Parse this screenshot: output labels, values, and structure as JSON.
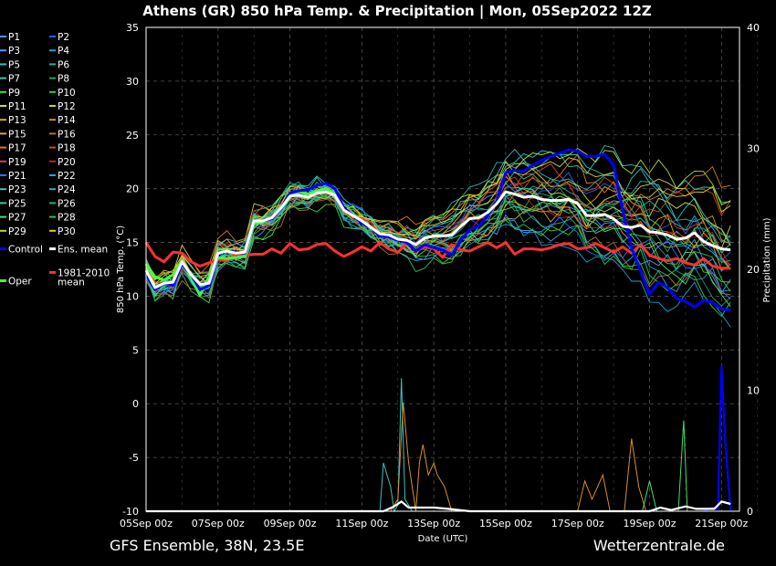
{
  "chart_data": {
    "type": "line",
    "title": "Athens  (GR)  850 hPa Temp. & Precipitation | Mon, 05Sep2022 12Z",
    "xlabel": "Date (UTC)",
    "ylabel": "850 hPa Temp. (°C)",
    "ylabel_right": "Precipitation (mm)",
    "x_ticks": [
      "05Sep 00z",
      "07Sep 00z",
      "09Sep 00z",
      "11Sep 00z",
      "13Sep 00z",
      "15Sep 00z",
      "17Sep 00z",
      "19Sep 00z",
      "21Sep 00z"
    ],
    "ylim": [
      -10,
      35
    ],
    "y_ticks": [
      -10,
      -5,
      0,
      5,
      10,
      15,
      20,
      25,
      30,
      35
    ],
    "ylim_right": [
      0,
      40
    ],
    "y_ticks_right": [
      0,
      10,
      20,
      30,
      40
    ],
    "grid": true,
    "legend_placement": "left",
    "legend": [
      {
        "label": "P1",
        "color": "#4f8fff"
      },
      {
        "label": "P2",
        "color": "#2a5dff"
      },
      {
        "label": "P3",
        "color": "#3fa0ff"
      },
      {
        "label": "P4",
        "color": "#1ea0d8"
      },
      {
        "label": "P5",
        "color": "#22c8c8"
      },
      {
        "label": "P6",
        "color": "#18b89a"
      },
      {
        "label": "P7",
        "color": "#20d0a0"
      },
      {
        "label": "P8",
        "color": "#1fa060"
      },
      {
        "label": "P9",
        "color": "#40e040"
      },
      {
        "label": "P10",
        "color": "#2fcf2f"
      },
      {
        "label": "P11",
        "color": "#c8e040"
      },
      {
        "label": "P12",
        "color": "#d8c840"
      },
      {
        "label": "P13",
        "color": "#e0b000"
      },
      {
        "label": "P14",
        "color": "#d89020"
      },
      {
        "label": "P15",
        "color": "#d8a060"
      },
      {
        "label": "P16",
        "color": "#b07040"
      },
      {
        "label": "P17",
        "color": "#e07820"
      },
      {
        "label": "P18",
        "color": "#c05020"
      },
      {
        "label": "P19",
        "color": "#e04040"
      },
      {
        "label": "P20",
        "color": "#c02020"
      },
      {
        "label": "P21",
        "color": "#3070ff"
      },
      {
        "label": "P22",
        "color": "#30a0e0"
      },
      {
        "label": "P23",
        "color": "#40c0c0"
      },
      {
        "label": "P24",
        "color": "#30b0b0"
      },
      {
        "label": "P25",
        "color": "#30d090"
      },
      {
        "label": "P26",
        "color": "#20b070"
      },
      {
        "label": "P27",
        "color": "#40e070"
      },
      {
        "label": "P28",
        "color": "#30c050"
      },
      {
        "label": "P29",
        "color": "#b0e030"
      },
      {
        "label": "P30",
        "color": "#e0d020"
      },
      {
        "label": "Control",
        "color": "#0000ff"
      },
      {
        "label": "Ens. mean",
        "color": "#ffffff"
      },
      {
        "label": "Oper",
        "color": "#40ff40"
      },
      {
        "label": "1981-2010\nmean",
        "color": "#ff3030"
      }
    ],
    "x_days": [
      0,
      0.25,
      0.5,
      0.75,
      1,
      1.25,
      1.5,
      1.75,
      2,
      2.25,
      2.5,
      2.75,
      3,
      3.25,
      3.5,
      3.75,
      4,
      4.25,
      4.5,
      4.75,
      5,
      5.25,
      5.5,
      5.75,
      6,
      6.25,
      6.5,
      6.75,
      7,
      7.25,
      7.5,
      7.75,
      8,
      8.25,
      8.5,
      8.75,
      9,
      9.25,
      9.5,
      9.75,
      10,
      10.25,
      10.5,
      10.75,
      11,
      11.25,
      11.5,
      11.75,
      12,
      12.25,
      12.5,
      12.75,
      13,
      13.25,
      13.5,
      13.75,
      14,
      14.25,
      14.5,
      14.75,
      15,
      15.25,
      15.5,
      15.75,
      16,
      16.25
    ],
    "series": [
      {
        "name": "Ens. mean",
        "color": "#ffffff",
        "values": [
          12.4,
          10.8,
          11.2,
          11.3,
          13.2,
          12.0,
          11.1,
          11.2,
          14.0,
          14.2,
          14.0,
          14.1,
          17.0,
          17.0,
          17.3,
          18.2,
          19.3,
          19.4,
          19.2,
          19.6,
          19.7,
          19.4,
          18.0,
          17.5,
          17.0,
          16.4,
          15.8,
          15.7,
          15.3,
          15.2,
          14.8,
          15.4,
          15.6,
          15.6,
          15.7,
          16.5,
          17.2,
          17.3,
          17.8,
          18.6,
          19.7,
          19.5,
          19.2,
          19.3,
          19.0,
          18.9,
          18.9,
          19.0,
          18.6,
          17.5,
          17.5,
          17.6,
          17.2,
          16.5,
          16.4,
          16.6,
          16.0,
          15.9,
          15.7,
          15.3,
          15.4,
          15.9,
          15.1,
          14.7,
          14.4,
          14.3
        ]
      },
      {
        "name": "Control",
        "color": "#0000ff",
        "values": [
          12.0,
          10.6,
          11.2,
          11.0,
          13.0,
          12.0,
          10.6,
          11.0,
          14.0,
          14.2,
          14.1,
          14.0,
          17.0,
          17.0,
          17.2,
          18.2,
          19.6,
          19.8,
          19.9,
          20.3,
          20.5,
          20.0,
          18.2,
          17.5,
          16.8,
          16.4,
          15.6,
          15.5,
          15.2,
          15.0,
          14.2,
          14.8,
          14.5,
          14.3,
          13.8,
          15.2,
          16.2,
          16.5,
          17.5,
          18.8,
          21.5,
          21.7,
          21.6,
          22.2,
          22.6,
          23.0,
          23.3,
          23.6,
          23.5,
          23.0,
          23.0,
          23.2,
          22.2,
          18.0,
          14.5,
          12.3,
          10.2,
          11.3,
          10.8,
          9.8,
          9.5,
          9.0,
          9.6,
          9.4,
          8.8,
          8.7
        ]
      },
      {
        "name": "1981-2010\nmean",
        "color": "#ff3030",
        "values": [
          15.0,
          13.7,
          13.2,
          14.1,
          14.0,
          13.2,
          12.8,
          13.1,
          13.4,
          13.3,
          13.9,
          13.8,
          13.9,
          13.9,
          14.4,
          14.0,
          14.9,
          14.3,
          14.4,
          14.8,
          14.9,
          14.2,
          13.7,
          14.1,
          14.6,
          14.2,
          15.0,
          14.4,
          14.1,
          14.9,
          14.2,
          14.6,
          14.4,
          13.6,
          14.8,
          14.3,
          14.2,
          14.6,
          15.0,
          14.5,
          15.0,
          13.9,
          14.4,
          14.4,
          14.3,
          14.5,
          14.8,
          14.9,
          14.4,
          14.5,
          14.9,
          14.5,
          14.1,
          14.6,
          14.0,
          14.8,
          13.8,
          13.5,
          13.3,
          13.5,
          13.1,
          12.9,
          13.5,
          12.8,
          12.6,
          12.6
        ]
      },
      {
        "name": "Oper",
        "color": "#40ff40",
        "values": [
          13.0,
          11.8,
          11.5,
          12.0,
          13.3,
          11.7,
          10.1,
          11.8,
          13.6,
          13.5,
          13.6,
          13.7,
          16.8,
          16.9,
          17.3,
          18.3,
          19.4,
          19.7,
          19.5,
          19.8,
          20.0,
          19.6
        ]
      }
    ],
    "precip_series": [
      {
        "name": "Control",
        "color": "#0000ff",
        "points": [
          [
            15.5,
            0
          ],
          [
            15.75,
            0.3
          ],
          [
            15.9,
            0.2
          ],
          [
            16.0,
            12
          ],
          [
            16.1,
            6
          ],
          [
            16.25,
            0
          ]
        ]
      },
      {
        "name": "P23",
        "color": "#40c0c0",
        "points": [
          [
            6.5,
            0
          ],
          [
            6.6,
            4
          ],
          [
            6.8,
            2
          ],
          [
            6.9,
            0
          ],
          [
            7.0,
            0.5
          ],
          [
            7.1,
            11
          ],
          [
            7.2,
            1
          ],
          [
            7.4,
            0
          ]
        ]
      },
      {
        "name": "P14",
        "color": "#d89020",
        "points": [
          [
            6.8,
            0
          ],
          [
            7.0,
            1
          ],
          [
            7.15,
            9
          ],
          [
            7.3,
            4
          ],
          [
            7.5,
            0
          ],
          [
            7.6,
            4
          ],
          [
            7.7,
            5.5
          ],
          [
            7.85,
            3
          ],
          [
            8.0,
            4
          ],
          [
            8.1,
            3
          ],
          [
            8.3,
            2
          ],
          [
            8.5,
            0
          ],
          [
            12.0,
            0
          ],
          [
            12.2,
            2.5
          ],
          [
            12.4,
            1
          ],
          [
            12.7,
            3
          ],
          [
            12.9,
            0
          ],
          [
            13.3,
            0
          ],
          [
            13.5,
            6
          ],
          [
            13.7,
            2
          ],
          [
            13.9,
            0
          ]
        ]
      },
      {
        "name": "P27",
        "color": "#40e070",
        "points": [
          [
            13.8,
            0
          ],
          [
            14.0,
            2.5
          ],
          [
            14.2,
            0
          ],
          [
            14.8,
            0
          ],
          [
            14.95,
            7.5
          ],
          [
            15.05,
            0
          ]
        ]
      },
      {
        "name": "Ens. mean",
        "color": "#ffffff",
        "points": [
          [
            0,
            0
          ],
          [
            6.6,
            0
          ],
          [
            6.9,
            0.4
          ],
          [
            7.1,
            0.8
          ],
          [
            7.3,
            0.3
          ],
          [
            7.6,
            0.3
          ],
          [
            8.0,
            0.3
          ],
          [
            8.4,
            0.2
          ],
          [
            9,
            0
          ],
          [
            14,
            0
          ],
          [
            14.3,
            0.3
          ],
          [
            14.6,
            0.1
          ],
          [
            15.0,
            0.4
          ],
          [
            15.3,
            0.2
          ],
          [
            15.8,
            0.2
          ],
          [
            16.0,
            0.8
          ],
          [
            16.25,
            0.6
          ]
        ]
      },
      {
        "name": "Oper",
        "color": "#40ff40",
        "points": [
          [
            0,
            0
          ],
          [
            5.25,
            0
          ]
        ]
      }
    ]
  },
  "footer": {
    "left": "GFS Ensemble, 38N, 23.5E",
    "right": "Wetterzentrale.de"
  }
}
